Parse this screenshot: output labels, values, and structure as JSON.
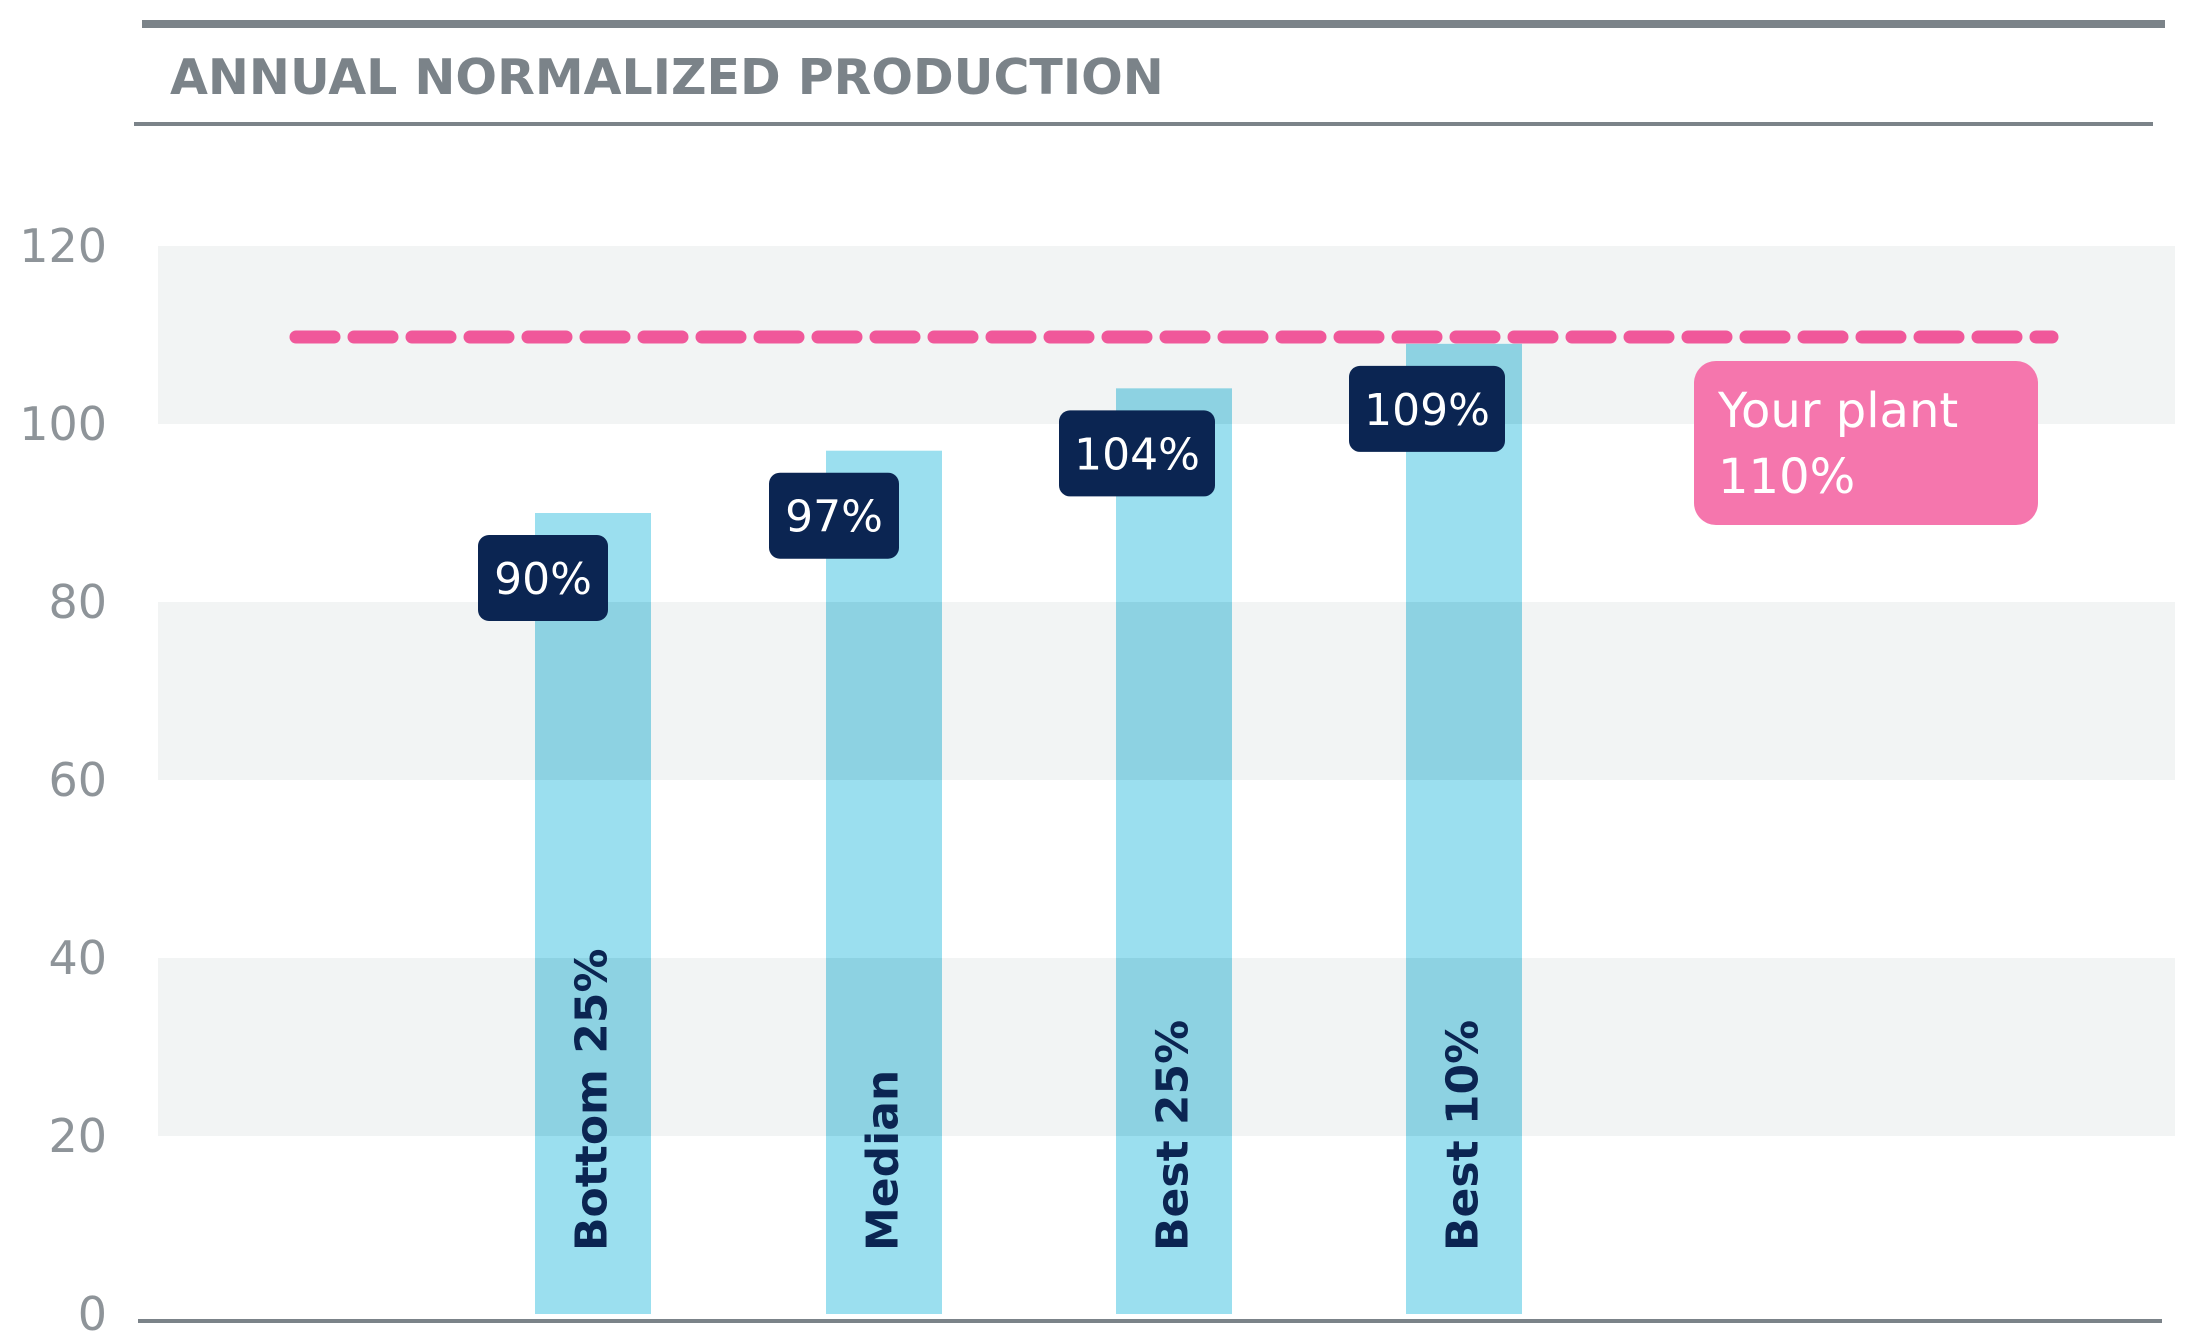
{
  "chart_data": {
    "type": "bar",
    "title": "ANNUAL NORMALIZED PRODUCTION",
    "xlabel": "",
    "ylabel": "",
    "ylim": [
      0,
      120
    ],
    "yticks": [
      0,
      20,
      40,
      60,
      80,
      100,
      120
    ],
    "categories": [
      "Bottom 25%",
      "Median",
      "Best 25%",
      "Best 10%"
    ],
    "values": [
      90,
      97,
      104,
      109
    ],
    "value_labels": [
      "90%",
      "97%",
      "104%",
      "109%"
    ],
    "reference_line": {
      "value": 110,
      "label": "Your plant",
      "value_label": "110%",
      "style": "dashed"
    },
    "grid": "alternating horizontal bands",
    "colors": {
      "bar": "#9bdfef",
      "bar_overlap": "#8dd2e2",
      "band": "#f2f4f4",
      "value_label_bg": "#0b2552",
      "value_label_text": "#ffffff",
      "category_text": "#0b2552",
      "reference_line": "#f0589a",
      "reference_box": "#f576ad",
      "title": "#7b8389",
      "rule": "#7b8389",
      "tick_text": "#8e9499"
    }
  }
}
